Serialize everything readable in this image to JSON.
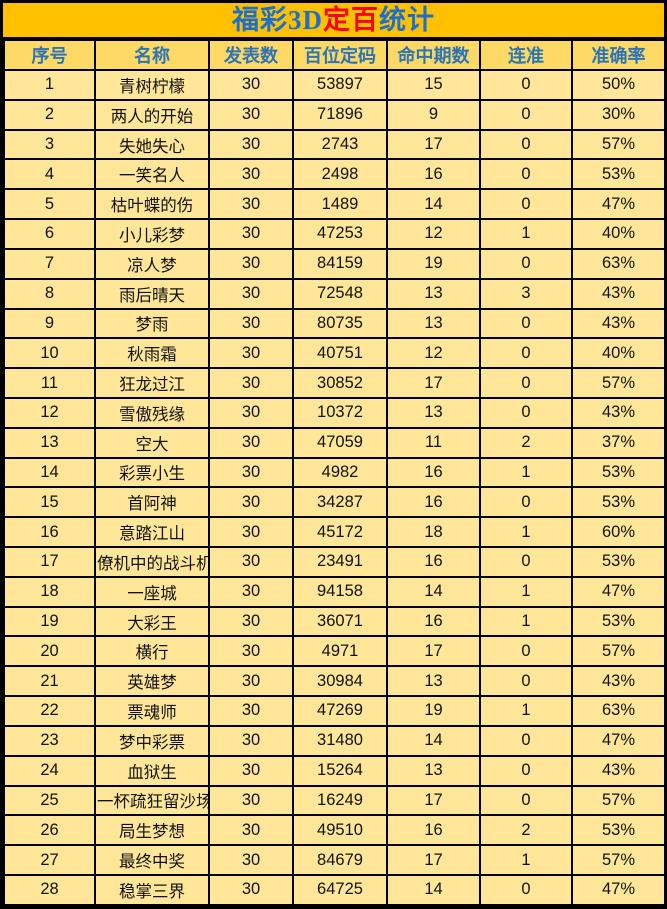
{
  "title": {
    "part1": "福彩3D",
    "part2": "定百",
    "part3": "统计"
  },
  "colors": {
    "band_bg": "#FFC000",
    "header_bg": "#FFD966",
    "row_bg": "#FFE699",
    "header_text": "#2E74B5",
    "title_blue": "#1F6FC8",
    "title_red": "#FF0000",
    "grid_border": "#000000",
    "body_text": "#121212"
  },
  "table": {
    "columns": [
      "序号",
      "名称",
      "发表数",
      "百位定码",
      "命中期数",
      "连准",
      "准确率"
    ],
    "col_keys": [
      "index",
      "name",
      "published",
      "code",
      "hits",
      "streak",
      "accuracy"
    ],
    "rows": [
      [
        "1",
        "青树柠檬",
        "30",
        "53897",
        "15",
        "0",
        "50%"
      ],
      [
        "2",
        "两人的开始",
        "30",
        "71896",
        "9",
        "0",
        "30%"
      ],
      [
        "3",
        "失她失心",
        "30",
        "2743",
        "17",
        "0",
        "57%"
      ],
      [
        "4",
        "一笑名人",
        "30",
        "2498",
        "16",
        "0",
        "53%"
      ],
      [
        "5",
        "枯叶蝶的伤",
        "30",
        "1489",
        "14",
        "0",
        "47%"
      ],
      [
        "6",
        "小儿彩梦",
        "30",
        "47253",
        "12",
        "1",
        "40%"
      ],
      [
        "7",
        "凉人梦",
        "30",
        "84159",
        "19",
        "0",
        "63%"
      ],
      [
        "8",
        "雨后晴天",
        "30",
        "72548",
        "13",
        "3",
        "43%"
      ],
      [
        "9",
        "梦雨",
        "30",
        "80735",
        "13",
        "0",
        "43%"
      ],
      [
        "10",
        "秋雨霜",
        "30",
        "40751",
        "12",
        "0",
        "40%"
      ],
      [
        "11",
        "狂龙过江",
        "30",
        "30852",
        "17",
        "0",
        "57%"
      ],
      [
        "12",
        "雪傲残缘",
        "30",
        "10372",
        "13",
        "0",
        "43%"
      ],
      [
        "13",
        "空大",
        "30",
        "47059",
        "11",
        "2",
        "37%"
      ],
      [
        "14",
        "彩票小生",
        "30",
        "4982",
        "16",
        "1",
        "53%"
      ],
      [
        "15",
        "首阿神",
        "30",
        "34287",
        "16",
        "0",
        "53%"
      ],
      [
        "16",
        "意踏江山",
        "30",
        "45172",
        "18",
        "1",
        "60%"
      ],
      [
        "17",
        "僚机中的战斗机",
        "30",
        "23491",
        "16",
        "0",
        "53%"
      ],
      [
        "18",
        "一座城",
        "30",
        "94158",
        "14",
        "1",
        "47%"
      ],
      [
        "19",
        "大彩王",
        "30",
        "36071",
        "16",
        "1",
        "53%"
      ],
      [
        "20",
        "横行",
        "30",
        "4971",
        "17",
        "0",
        "57%"
      ],
      [
        "21",
        "英雄梦",
        "30",
        "30984",
        "13",
        "0",
        "43%"
      ],
      [
        "22",
        "票魂师",
        "30",
        "47269",
        "19",
        "1",
        "63%"
      ],
      [
        "23",
        "梦中彩票",
        "30",
        "31480",
        "14",
        "0",
        "47%"
      ],
      [
        "24",
        "血狱生",
        "30",
        "15264",
        "13",
        "0",
        "43%"
      ],
      [
        "25",
        "一杯疏狂留沙场",
        "30",
        "16249",
        "17",
        "0",
        "57%"
      ],
      [
        "26",
        "局生梦想",
        "30",
        "49510",
        "16",
        "2",
        "53%"
      ],
      [
        "27",
        "最终中奖",
        "30",
        "84679",
        "17",
        "1",
        "57%"
      ],
      [
        "28",
        "稳掌三界",
        "30",
        "64725",
        "14",
        "0",
        "47%"
      ]
    ]
  }
}
